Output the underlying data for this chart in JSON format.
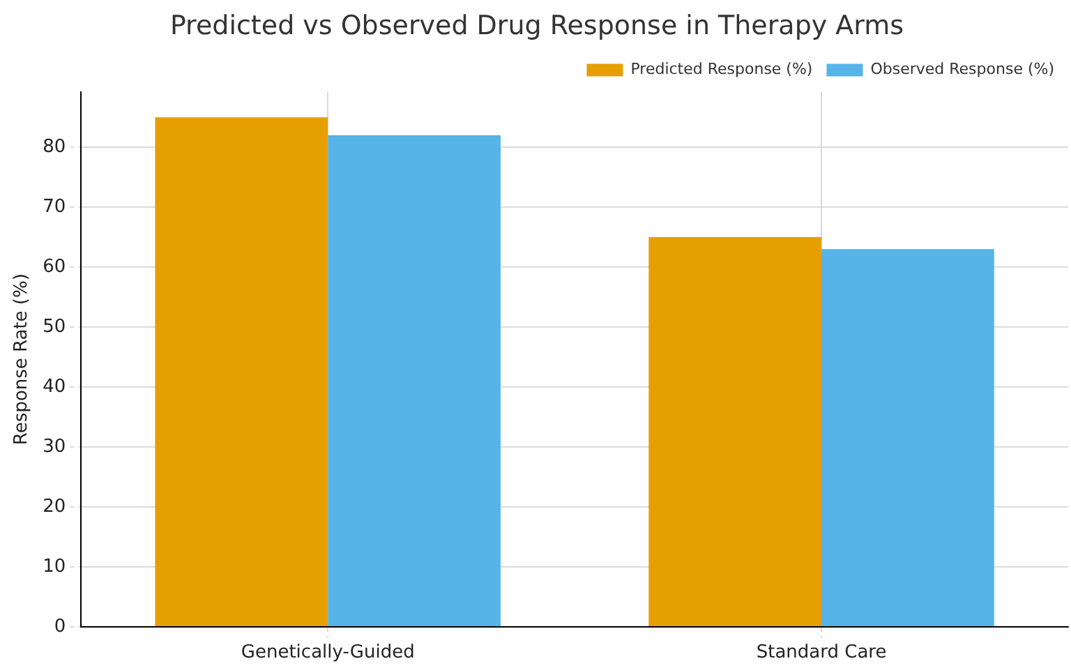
{
  "chart_data": {
    "type": "bar",
    "title": "Predicted vs Observed Drug Response in Therapy Arms",
    "ylabel": "Response Rate (%)",
    "categories": [
      "Genetically-Guided",
      "Standard Care"
    ],
    "series": [
      {
        "name": "Predicted Response (%)",
        "color": "#e69f00",
        "values": [
          85,
          65
        ]
      },
      {
        "name": "Observed Response (%)",
        "color": "#56b4e9",
        "values": [
          82,
          63
        ]
      }
    ],
    "ylim": [
      0,
      89.25
    ],
    "yticks": [
      0,
      10,
      20,
      30,
      40,
      50,
      60,
      70,
      80
    ],
    "grid": true,
    "legend": "top right"
  }
}
